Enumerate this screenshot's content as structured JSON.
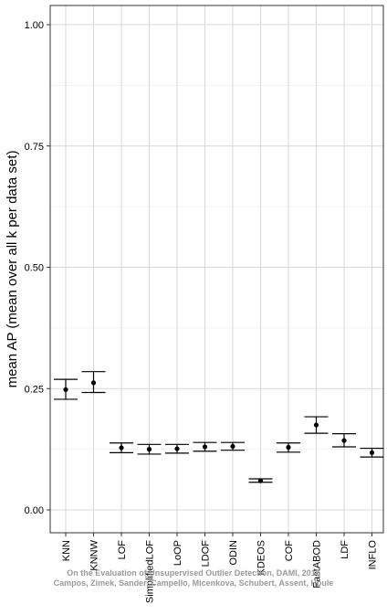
{
  "chart_data": {
    "type": "errorbar",
    "title": "",
    "xlabel": "",
    "ylabel": "mean AP (mean over all k per data set)",
    "ylim": [
      -0.03,
      1.05
    ],
    "yticks": [
      "0.00",
      "0.25",
      "0.50",
      "0.75",
      "1.00"
    ],
    "ytick_values": [
      0,
      0.25,
      0.5,
      0.75,
      1.0
    ],
    "grid": true,
    "categories": [
      "KNN",
      "KNNW",
      "LOF",
      "SimplifiedLOF",
      "LoOP",
      "LDOF",
      "ODIN",
      "KDEOS",
      "COF",
      "FastABOD",
      "LDF",
      "INFLO"
    ],
    "series": [
      {
        "mean": [
          0.248,
          0.262,
          0.128,
          0.125,
          0.126,
          0.13,
          0.131,
          0.06,
          0.129,
          0.175,
          0.143,
          0.118
        ],
        "lower": [
          0.228,
          0.242,
          0.118,
          0.115,
          0.117,
          0.121,
          0.123,
          0.057,
          0.119,
          0.158,
          0.13,
          0.109
        ],
        "upper": [
          0.269,
          0.285,
          0.138,
          0.135,
          0.135,
          0.139,
          0.139,
          0.064,
          0.138,
          0.192,
          0.157,
          0.127
        ]
      }
    ]
  },
  "watermark": {
    "line1": "On the Evaluation of Unsupervised Outlier Detection, DAMI, 2016",
    "line2": "Campos, Zimek, Sander, Campello, Micenkova, Schubert, Assent, Houle"
  }
}
